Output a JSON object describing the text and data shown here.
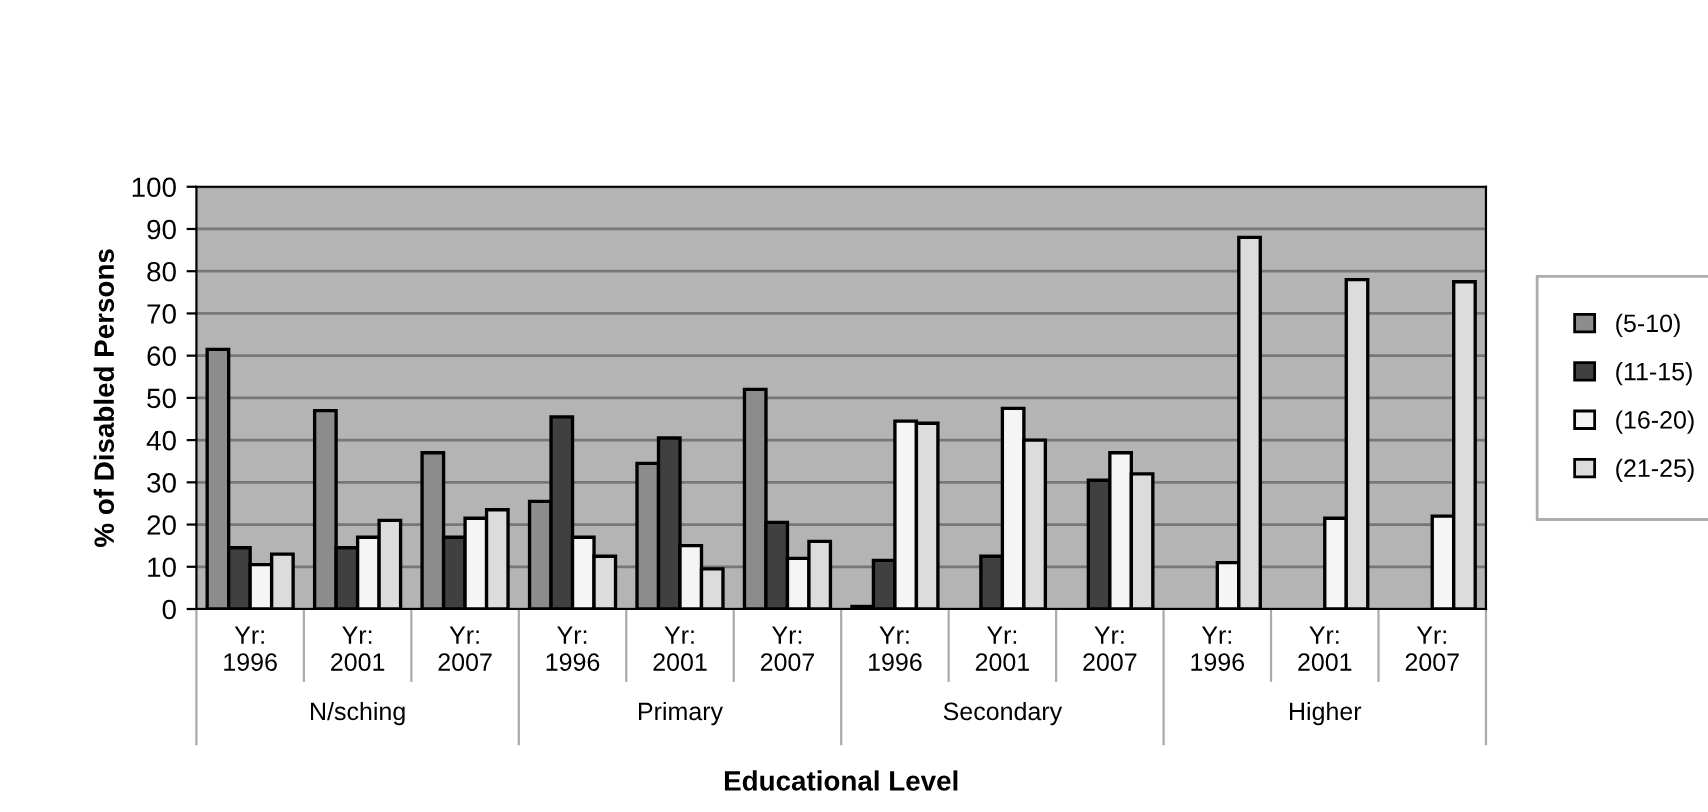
{
  "chart_data": {
    "type": "bar",
    "xlabel": "Educational Level",
    "ylabel": "% of Disabled Persons",
    "categories": [
      "Yr:\n1996",
      "Yr:\n2001",
      "Yr:\n2007",
      "Yr:\n1996",
      "Yr:\n2001",
      "Yr:\n2007",
      "Yr:\n1996",
      "Yr:\n2001",
      "Yr:\n2007",
      "Yr:\n1996",
      "Yr:\n2001",
      "Yr:\n2007"
    ],
    "series": [
      {
        "name": "(5-10)",
        "color": "#8c8c8c",
        "values": [
          61.5,
          47,
          37,
          25.5,
          34.5,
          52,
          0.6,
          null,
          null,
          null,
          null,
          null
        ]
      },
      {
        "name": "(11-15)",
        "color": "#404040",
        "values": [
          14.5,
          14.5,
          17,
          45.5,
          40.5,
          20.5,
          11.5,
          12.5,
          30.5,
          null,
          null,
          null
        ]
      },
      {
        "name": "(16-20)",
        "color": "#f5f5f5",
        "values": [
          10.5,
          17,
          21.5,
          17,
          15,
          12,
          44.5,
          47.5,
          37,
          11,
          21.5,
          22
        ]
      },
      {
        "name": "(21-25)",
        "color": "#dcdcdc",
        "values": [
          13,
          21,
          23.5,
          12.5,
          9.5,
          16,
          44,
          40,
          32,
          88,
          78,
          77.5
        ]
      }
    ],
    "annotations": [
      "N/sching",
      "Primary",
      "Secondary",
      "Higher"
    ],
    "ylim": [
      0,
      100
    ],
    "yticks": [
      0,
      10,
      20,
      30,
      40,
      50,
      60,
      70,
      80,
      90,
      100
    ],
    "grid": "y",
    "legend": "right"
  }
}
